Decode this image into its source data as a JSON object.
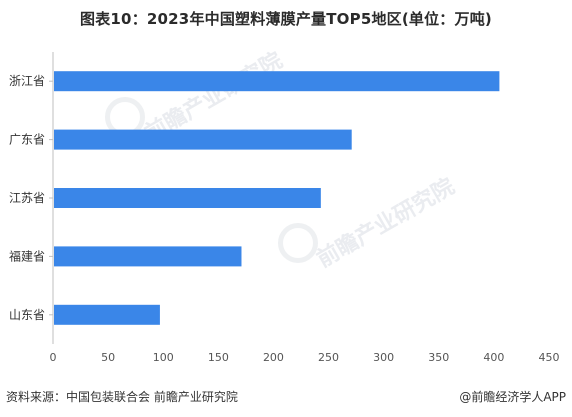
{
  "chart_data": {
    "type": "bar",
    "orientation": "horizontal",
    "title": "图表10：2023年中国塑料薄膜产量TOP5地区(单位：万吨)",
    "categories": [
      "浙江省",
      "广东省",
      "江苏省",
      "福建省",
      "山东省"
    ],
    "values": [
      405,
      271,
      243,
      171,
      97
    ],
    "xlim": [
      0,
      450
    ],
    "xticks": [
      "0",
      "50",
      "100",
      "150",
      "200",
      "250",
      "300",
      "350",
      "400",
      "450"
    ],
    "bar_color": "#3a86e8",
    "grid": false,
    "legend": "none"
  },
  "footer": {
    "source": "资料来源：中国包装联合会 前瞻产业研究院",
    "brand": "@前瞻经济学人APP"
  },
  "watermark": {
    "text": "前瞻产业研究院"
  }
}
